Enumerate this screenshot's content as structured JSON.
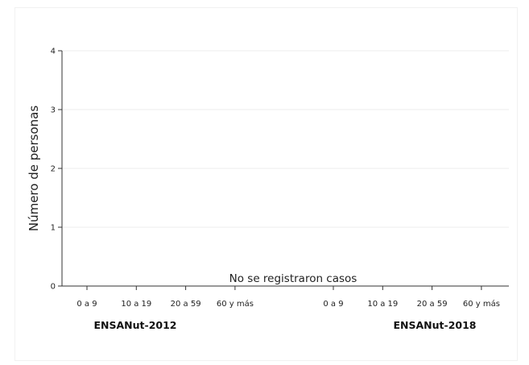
{
  "chart_data": {
    "type": "bar",
    "title": "",
    "xlabel": "",
    "ylabel": "Número de personas",
    "ylim": [
      0,
      4
    ],
    "y_ticks": [
      "0",
      "1",
      "2",
      "3",
      "4"
    ],
    "grid": true,
    "groups": [
      {
        "name": "ENSANut-2012",
        "categories": [
          "0 a 9",
          "10 a 19",
          "20 a 59",
          "60 y más"
        ],
        "values": [
          0,
          0,
          0,
          0
        ]
      },
      {
        "name": "ENSANut-2018",
        "categories": [
          "0 a 9",
          "10 a 19",
          "20 a 59",
          "60 y más"
        ],
        "values": [
          0,
          0,
          0,
          0
        ]
      }
    ],
    "annotation": "No se registraron casos"
  }
}
